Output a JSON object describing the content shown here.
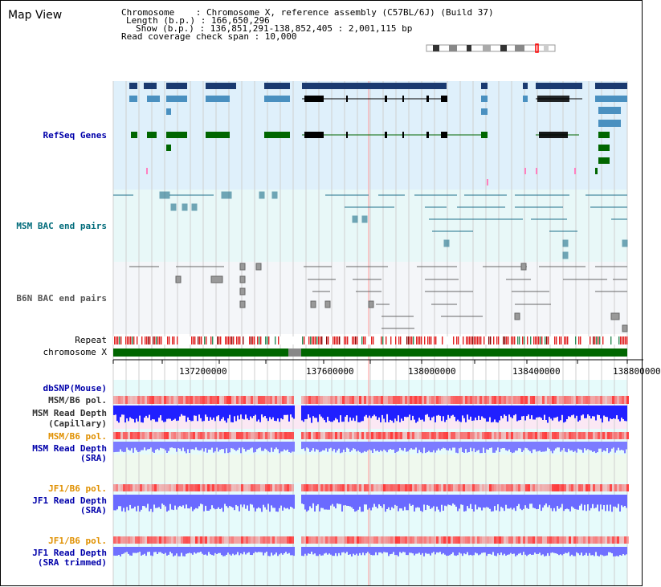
{
  "panel": {
    "title": "Map View"
  },
  "info": {
    "chromosome": "Chromosome    : Chromosome X, reference assembly (C57BL/6J) (Build 37)",
    "length": "Length (b.p.) : 166,650,296",
    "show": "Show (b.p.) : 136,851,291-138,852,405 : 2,001,115 bp",
    "coverage": "Read coverage check span : 10,000"
  },
  "tracks": {
    "refseq": "RefSeq Genes",
    "msm_bac": "MSM BAC end pairs",
    "b6n_bac": "B6N BAC end pairs",
    "repeat": "Repeat",
    "chromosome": "chromosome X",
    "dbsnp": "dbSNP(Mouse)",
    "msm_pol_1": "MSM/B6 pol.",
    "msm_depth_cap_1": "MSM Read Depth",
    "msm_depth_cap_2": "(Capillary)",
    "msm_pol_2": "MSM/B6 pol.",
    "msm_depth_sra_1": "MSM Read Depth",
    "msm_depth_sra_2": "(SRA)",
    "jf1_pol_1": "JF1/B6 pol.",
    "jf1_depth_1": "JF1 Read Depth",
    "jf1_depth_2": "(SRA)",
    "jf1_pol_2": "JF1/B6 pol.",
    "jf1_trim_1": "JF1 Read Depth",
    "jf1_trim_2": "(SRA trimmed)"
  },
  "ruler": {
    "ticks": [
      "137200000",
      "137600000",
      "138000000",
      "138400000",
      "138800000"
    ]
  },
  "colors": {
    "refseq_bg": "#dff0fb",
    "bac_bg": "#e8f8f8",
    "gene_blue": "#1f5fa0",
    "gene_green": "#006600",
    "chromosome": "#006600",
    "depth_blue": "#2c2cff",
    "depth_light": "#8080ff",
    "pol_red": "#ff4040"
  }
}
